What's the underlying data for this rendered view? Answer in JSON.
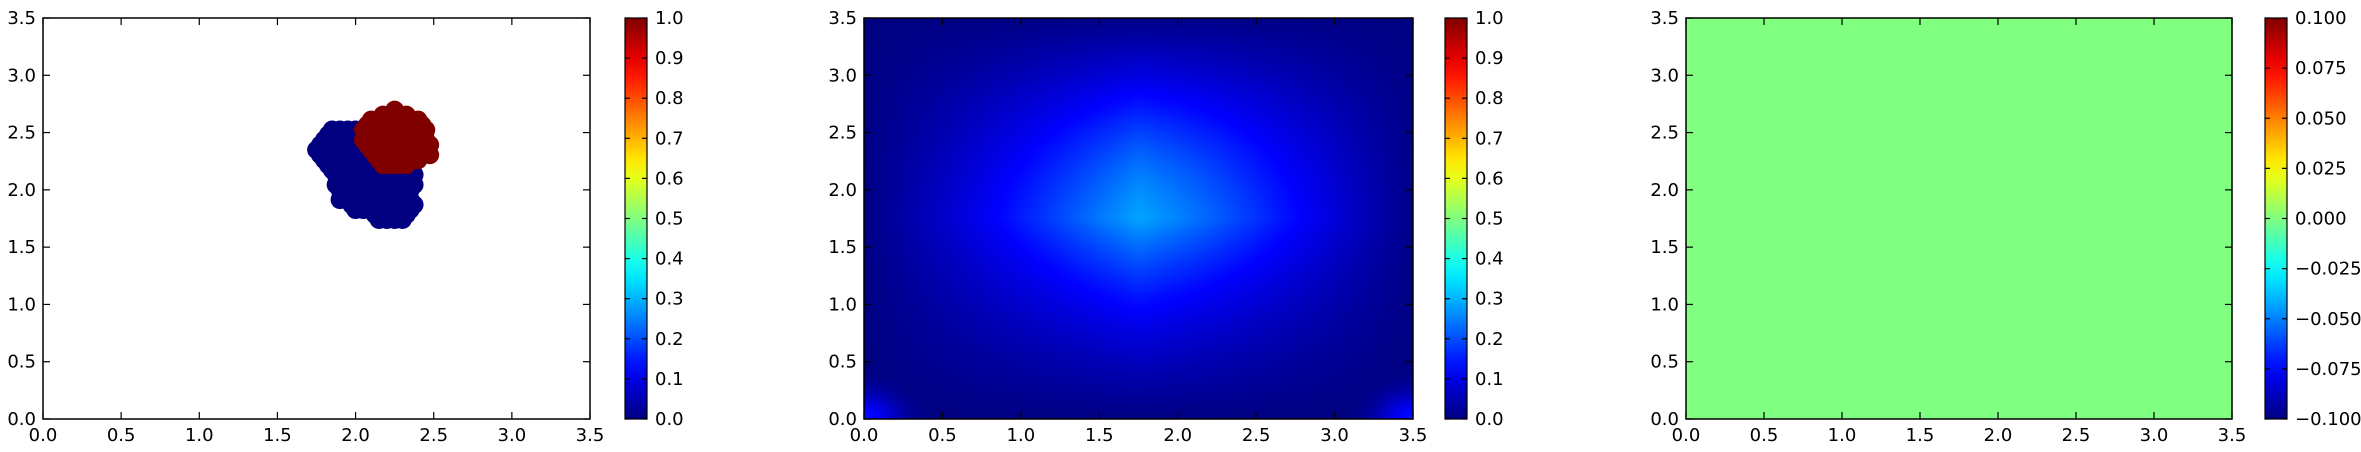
{
  "chart_data": [
    {
      "type": "scatter",
      "xlim": [
        0,
        3.5
      ],
      "ylim": [
        0,
        3.5
      ],
      "xticks": [
        "0.0",
        "0.5",
        "1.0",
        "1.5",
        "2.0",
        "2.5",
        "3.0",
        "3.5"
      ],
      "yticks": [
        "0.0",
        "0.5",
        "1.0",
        "1.5",
        "2.0",
        "2.5",
        "3.0",
        "3.5"
      ],
      "grid": false,
      "colormap": "jet",
      "color_range": [
        0.0,
        1.0
      ],
      "colorbar_ticks": [
        "0.0",
        "0.1",
        "0.2",
        "0.3",
        "0.4",
        "0.5",
        "0.6",
        "0.7",
        "0.8",
        "0.9",
        "1.0"
      ],
      "marker_step": 0.05,
      "marker_radius": 0.06,
      "clusters": [
        {
          "value": 0.0,
          "regions": [
            {
              "cx": 1.96,
              "cy": 2.35,
              "rx": 0.22,
              "ry": 0.21
            },
            {
              "cx": 2.12,
              "cy": 2.08,
              "rx": 0.27,
              "ry": 0.29
            },
            {
              "cx": 2.22,
              "cy": 1.88,
              "rx": 0.16,
              "ry": 0.18
            }
          ]
        },
        {
          "value": 1.0,
          "regions": [
            {
              "cx": 2.25,
              "cy": 2.45,
              "rx": 0.21,
              "ry": 0.25
            },
            {
              "cx": 2.34,
              "cy": 2.38,
              "rx": 0.16,
              "ry": 0.14
            }
          ]
        }
      ]
    },
    {
      "type": "heatmap",
      "xlim": [
        0,
        3.5
      ],
      "ylim": [
        0,
        3.5
      ],
      "xticks": [
        "0.0",
        "0.5",
        "1.0",
        "1.5",
        "2.0",
        "2.5",
        "3.0",
        "3.5"
      ],
      "yticks": [
        "0.0",
        "0.5",
        "1.0",
        "1.5",
        "2.0",
        "2.5",
        "3.0",
        "3.5"
      ],
      "grid": false,
      "colormap": "jet",
      "color_range": [
        0.0,
        1.0
      ],
      "colorbar_ticks": [
        "0.0",
        "0.1",
        "0.2",
        "0.3",
        "0.4",
        "0.5",
        "0.6",
        "0.7",
        "0.8",
        "0.9",
        "1.0"
      ],
      "field": {
        "peak_value": 0.3,
        "peak_x": 2.05,
        "peak_y": 2.3,
        "edge_value": 0.0,
        "corner_value": 0.14
      }
    },
    {
      "type": "heatmap",
      "xlim": [
        0,
        3.5
      ],
      "ylim": [
        0,
        3.5
      ],
      "xticks": [
        "0.0",
        "0.5",
        "1.0",
        "1.5",
        "2.0",
        "2.5",
        "3.0",
        "3.5"
      ],
      "yticks": [
        "0.0",
        "0.5",
        "1.0",
        "1.5",
        "2.0",
        "2.5",
        "3.0",
        "3.5"
      ],
      "grid": false,
      "colormap": "jet",
      "color_range": [
        -0.1,
        0.1
      ],
      "colorbar_ticks": [
        "−0.100",
        "−0.075",
        "−0.050",
        "−0.025",
        "0.000",
        "0.025",
        "0.050",
        "0.075",
        "0.100"
      ],
      "field": {
        "uniform_value": 0.0
      }
    }
  ]
}
